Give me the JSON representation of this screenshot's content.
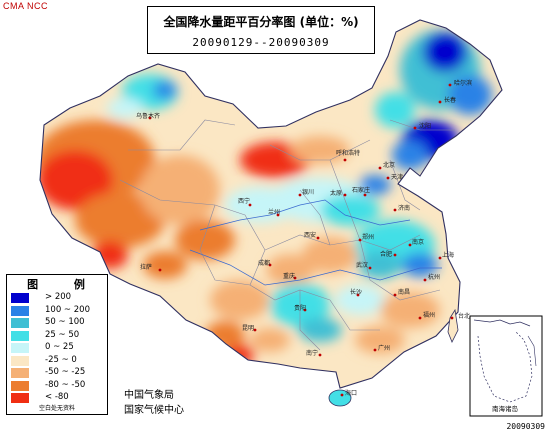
{
  "brand": "CMA NCC",
  "title": {
    "line1": "全国降水量距平百分率图 (单位：%)",
    "line2": "20090129--20090309"
  },
  "legend": {
    "title": "图 例",
    "items": [
      {
        "label": "> 200",
        "color": "#0000cd"
      },
      {
        "label": "100 ~ 200",
        "color": "#2a82e6"
      },
      {
        "label": "50 ~ 100",
        "color": "#3fbfd4"
      },
      {
        "label": "25 ~ 50",
        "color": "#43dfe6"
      },
      {
        "label": "0 ~ 25",
        "color": "#c6f5f8"
      },
      {
        "label": "-25 ~ 0",
        "color": "#fbe7c4"
      },
      {
        "label": "-50 ~ -25",
        "color": "#f5b075"
      },
      {
        "label": "-80 ~ -50",
        "color": "#ec7d2f"
      },
      {
        "label": "< -80",
        "color": "#f02e12"
      }
    ],
    "note": "空白处无资料"
  },
  "org": {
    "line1": "中国气象局",
    "line2": "国家气候中心"
  },
  "inset_label": "南海诸岛",
  "datecode": "20090309",
  "cities": [
    {
      "name": "哈尔滨",
      "id": "harbin"
    },
    {
      "name": "长春",
      "id": "changchun"
    },
    {
      "name": "沈阳",
      "id": "shenyang"
    },
    {
      "name": "呼和浩特",
      "id": "hohhot"
    },
    {
      "name": "北京",
      "id": "beijing"
    },
    {
      "name": "天津",
      "id": "tianjin"
    },
    {
      "name": "石家庄",
      "id": "shijiazhuang"
    },
    {
      "name": "太原",
      "id": "taiyuan"
    },
    {
      "name": "济南",
      "id": "jinan"
    },
    {
      "name": "银川",
      "id": "yinchuan"
    },
    {
      "name": "兰州",
      "id": "lanzhou"
    },
    {
      "name": "西宁",
      "id": "xining"
    },
    {
      "name": "西安",
      "id": "xian"
    },
    {
      "name": "郑州",
      "id": "zhengzhou"
    },
    {
      "name": "南京",
      "id": "nanjing"
    },
    {
      "name": "合肥",
      "id": "hefei"
    },
    {
      "name": "上海",
      "id": "shanghai"
    },
    {
      "name": "武汉",
      "id": "wuhan"
    },
    {
      "name": "杭州",
      "id": "hangzhou"
    },
    {
      "name": "成都",
      "id": "chengdu"
    },
    {
      "name": "重庆",
      "id": "chongqing"
    },
    {
      "name": "长沙",
      "id": "changsha"
    },
    {
      "name": "南昌",
      "id": "nanchang"
    },
    {
      "name": "福州",
      "id": "fuzhou"
    },
    {
      "name": "贵阳",
      "id": "guiyang"
    },
    {
      "name": "昆明",
      "id": "kunming"
    },
    {
      "name": "南宁",
      "id": "nanning"
    },
    {
      "name": "广州",
      "id": "guangzhou"
    },
    {
      "name": "台北",
      "id": "taipei"
    },
    {
      "name": "海口",
      "id": "haikou"
    },
    {
      "name": "拉萨",
      "id": "lhasa"
    },
    {
      "name": "乌鲁木齐",
      "id": "urumqi"
    }
  ]
}
